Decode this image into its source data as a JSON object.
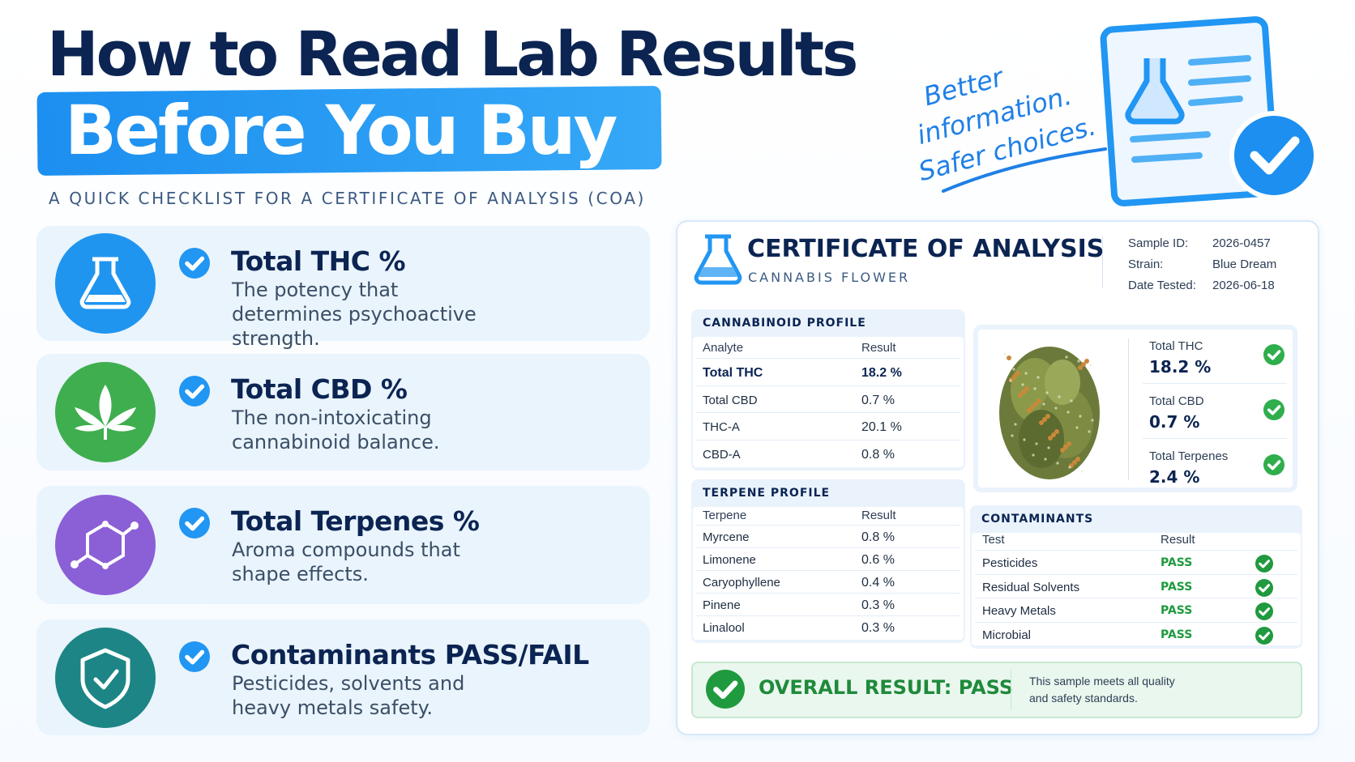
{
  "header": {
    "title": "How to Read Lab Results",
    "highlight": "Before You Buy",
    "subtitle": "A QUICK CHECKLIST FOR A CERTIFICATE OF ANALYSIS (COA)"
  },
  "tagline": [
    "Better",
    "information.",
    "Safer choices."
  ],
  "checklist": [
    {
      "title": "Total THC %",
      "description": "The potency that determines psychoactive strength."
    },
    {
      "title": "Total CBD %",
      "description": "The non-intoxicating cannabinoid balance."
    },
    {
      "title": "Total Terpenes %",
      "description": "Aroma compounds that shape effects."
    },
    {
      "title": "Contaminants PASS/FAIL",
      "description": "Pesticides, solvents and heavy metals safety."
    }
  ],
  "coa": {
    "title": "CERTIFICATE OF ANALYSIS",
    "subtitle": "CANNABIS FLOWER",
    "meta": [
      {
        "label": "Sample ID:",
        "value": "2026-0457"
      },
      {
        "label": "Strain:",
        "value": "Blue Dream"
      },
      {
        "label": "Date Tested:",
        "value": "2026-06-18"
      }
    ],
    "cannabinoid_profile": {
      "heading": "CANNABINOID PROFILE",
      "columns": [
        "Analyte",
        "Result"
      ],
      "rows": [
        [
          "Total THC",
          "18.2 %"
        ],
        [
          "Total CBD",
          "0.7 %"
        ],
        [
          "THC-A",
          "20.1 %"
        ],
        [
          "CBD-A",
          "0.8 %"
        ]
      ]
    },
    "summary": [
      {
        "label": "Total THC",
        "value": "18.2 %"
      },
      {
        "label": "Total CBD",
        "value": "0.7 %"
      },
      {
        "label": "Total Terpenes",
        "value": "2.4 %"
      }
    ],
    "terpene_profile": {
      "heading": "TERPENE PROFILE",
      "columns": [
        "Terpene",
        "Result"
      ],
      "rows": [
        [
          "Myrcene",
          "0.8 %"
        ],
        [
          "Limonene",
          "0.6 %"
        ],
        [
          "Caryophyllene",
          "0.4 %"
        ],
        [
          "Pinene",
          "0.3 %"
        ],
        [
          "Linalool",
          "0.3 %"
        ]
      ]
    },
    "contaminants": {
      "heading": "CONTAMINANTS",
      "columns": [
        "Test",
        "Result"
      ],
      "rows": [
        [
          "Pesticides",
          "PASS"
        ],
        [
          "Residual Solvents",
          "PASS"
        ],
        [
          "Heavy Metals",
          "PASS"
        ],
        [
          "Microbial",
          "PASS"
        ]
      ]
    },
    "overall": {
      "result": "OVERALL RESULT: PASS",
      "note": "This sample meets all quality and safety standards."
    }
  }
}
